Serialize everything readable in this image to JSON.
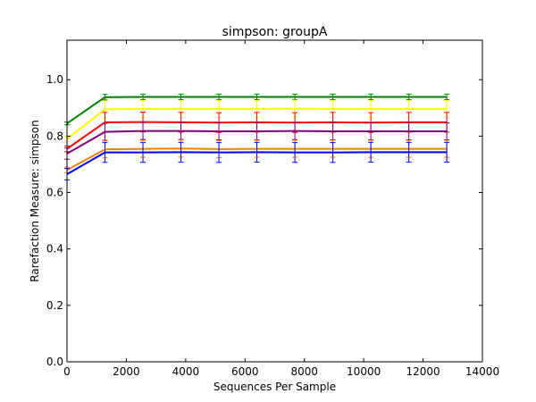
{
  "chart_data": {
    "type": "line",
    "title": "simpson: groupA",
    "xlabel": "Sequences Per Sample",
    "ylabel": "Rarefaction Measure: simpson",
    "xlim": [
      0,
      14000
    ],
    "ylim": [
      0,
      1.14
    ],
    "xticks": [
      0,
      2000,
      4000,
      6000,
      8000,
      10000,
      12000,
      14000
    ],
    "xtick_labels": [
      "0",
      "2000",
      "4000",
      "6000",
      "8000",
      "10000",
      "12000",
      "14000"
    ],
    "yticks": [
      0.0,
      0.2,
      0.4,
      0.6,
      0.8,
      1.0
    ],
    "ytick_labels": [
      "0.0",
      "0.2",
      "0.4",
      "0.6",
      "0.8",
      "1.0"
    ],
    "grid": false,
    "legend": "none",
    "x": [
      0,
      1280,
      2560,
      3840,
      5120,
      6400,
      7680,
      8960,
      10240,
      11520,
      12800
    ],
    "series": [
      {
        "color": "#008000",
        "values": [
          0.845,
          0.938,
          0.939,
          0.939,
          0.939,
          0.939,
          0.939,
          0.939,
          0.939,
          0.939,
          0.939
        ],
        "error": [
          0.005,
          0.01,
          0.01,
          0.01,
          0.01,
          0.01,
          0.01,
          0.01,
          0.01,
          0.01,
          0.01
        ]
      },
      {
        "color": "#ffff00",
        "values": [
          0.79,
          0.895,
          0.896,
          0.896,
          0.896,
          0.896,
          0.897,
          0.896,
          0.896,
          0.896,
          0.896
        ],
        "error": [
          0.01,
          0.03,
          0.03,
          0.03,
          0.03,
          0.03,
          0.03,
          0.03,
          0.03,
          0.03,
          0.03
        ]
      },
      {
        "color": "#ff0000",
        "values": [
          0.755,
          0.849,
          0.85,
          0.849,
          0.848,
          0.849,
          0.848,
          0.849,
          0.848,
          0.849,
          0.849
        ],
        "error": [
          0.01,
          0.035,
          0.035,
          0.035,
          0.035,
          0.035,
          0.035,
          0.035,
          0.035,
          0.035,
          0.035
        ]
      },
      {
        "color": "#800080",
        "values": [
          0.738,
          0.815,
          0.818,
          0.818,
          0.817,
          0.817,
          0.818,
          0.817,
          0.817,
          0.817,
          0.817
        ],
        "error": [
          0.02,
          0.03,
          0.03,
          0.03,
          0.03,
          0.03,
          0.03,
          0.03,
          0.03,
          0.03,
          0.03
        ]
      },
      {
        "color": "#ff8000",
        "values": [
          0.68,
          0.753,
          0.755,
          0.756,
          0.754,
          0.755,
          0.755,
          0.755,
          0.755,
          0.755,
          0.755
        ],
        "error": [
          0.01,
          0.03,
          0.03,
          0.03,
          0.03,
          0.03,
          0.03,
          0.03,
          0.03,
          0.03,
          0.03
        ]
      },
      {
        "color": "#0000ff",
        "values": [
          0.665,
          0.742,
          0.742,
          0.743,
          0.742,
          0.743,
          0.742,
          0.742,
          0.743,
          0.743,
          0.743
        ],
        "error": [
          0.02,
          0.035,
          0.035,
          0.035,
          0.035,
          0.035,
          0.035,
          0.035,
          0.035,
          0.035,
          0.035
        ]
      }
    ]
  }
}
